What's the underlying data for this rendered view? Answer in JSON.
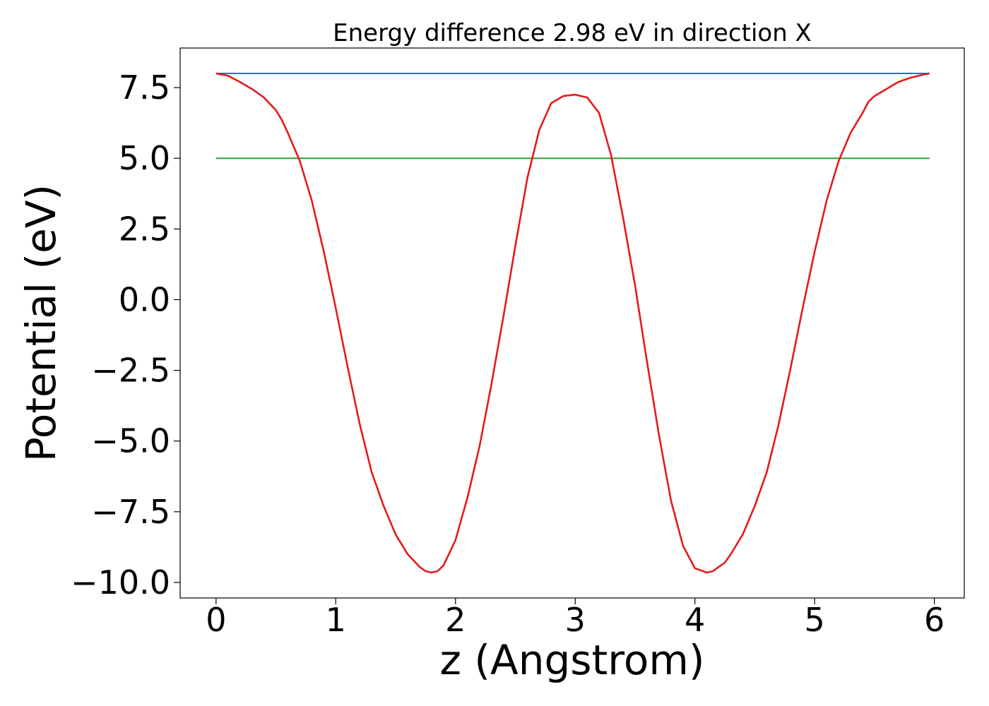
{
  "chart_data": {
    "type": "line",
    "title": "Energy difference 2.98 eV in direction X",
    "xlabel": "z (Angstrom)",
    "ylabel": "Potential (eV)",
    "xlim": [
      -0.3,
      6.25
    ],
    "ylim": [
      -10.55,
      8.9
    ],
    "xticks": [
      0,
      1,
      2,
      3,
      4,
      5,
      6
    ],
    "xtick_labels": [
      "0",
      "1",
      "2",
      "3",
      "4",
      "5",
      "6"
    ],
    "yticks": [
      7.5,
      5.0,
      2.5,
      0.0,
      -2.5,
      -5.0,
      -7.5,
      -10.0
    ],
    "ytick_labels": [
      "7.5",
      "5.0",
      "2.5",
      "0.0",
      "−2.5",
      "−5.0",
      "−7.5",
      "−10.0"
    ],
    "grid": false,
    "series": [
      {
        "color": "#1f77b4",
        "x": [
          0,
          5.96
        ],
        "y": [
          8.0,
          8.0
        ]
      },
      {
        "color": "#2ca02c",
        "x": [
          0,
          5.96
        ],
        "y": [
          5.0,
          5.0
        ]
      },
      {
        "color": "#e41a1c",
        "x": [
          0,
          0.1,
          0.2,
          0.3,
          0.4,
          0.5,
          0.55,
          0.6,
          0.7,
          0.8,
          0.9,
          1.0,
          1.1,
          1.2,
          1.3,
          1.4,
          1.5,
          1.6,
          1.7,
          1.75,
          1.8,
          1.85,
          1.9,
          2.0,
          2.1,
          2.2,
          2.3,
          2.4,
          2.5,
          2.6,
          2.7,
          2.8,
          2.9,
          3.0,
          3.1,
          3.2,
          3.3,
          3.4,
          3.5,
          3.6,
          3.7,
          3.8,
          3.9,
          4.0,
          4.1,
          4.15,
          4.2,
          4.25,
          4.3,
          4.4,
          4.5,
          4.6,
          4.7,
          4.8,
          4.9,
          5.0,
          5.1,
          5.2,
          5.3,
          5.4,
          5.45,
          5.5,
          5.6,
          5.7,
          5.8,
          5.9,
          5.96
        ],
        "y": [
          8.0,
          7.92,
          7.7,
          7.45,
          7.15,
          6.7,
          6.35,
          5.9,
          4.9,
          3.5,
          1.7,
          -0.3,
          -2.4,
          -4.4,
          -6.1,
          -7.3,
          -8.3,
          -9.0,
          -9.45,
          -9.6,
          -9.65,
          -9.6,
          -9.4,
          -8.5,
          -7.0,
          -5.2,
          -3.0,
          -0.6,
          1.9,
          4.3,
          6.0,
          6.95,
          7.2,
          7.25,
          7.15,
          6.6,
          5.1,
          2.9,
          0.5,
          -2.2,
          -4.8,
          -7.1,
          -8.7,
          -9.5,
          -9.65,
          -9.6,
          -9.45,
          -9.3,
          -9.0,
          -8.3,
          -7.3,
          -6.1,
          -4.4,
          -2.4,
          -0.3,
          1.7,
          3.5,
          4.9,
          5.9,
          6.6,
          7.0,
          7.2,
          7.45,
          7.7,
          7.85,
          7.95,
          8.0
        ]
      }
    ]
  }
}
